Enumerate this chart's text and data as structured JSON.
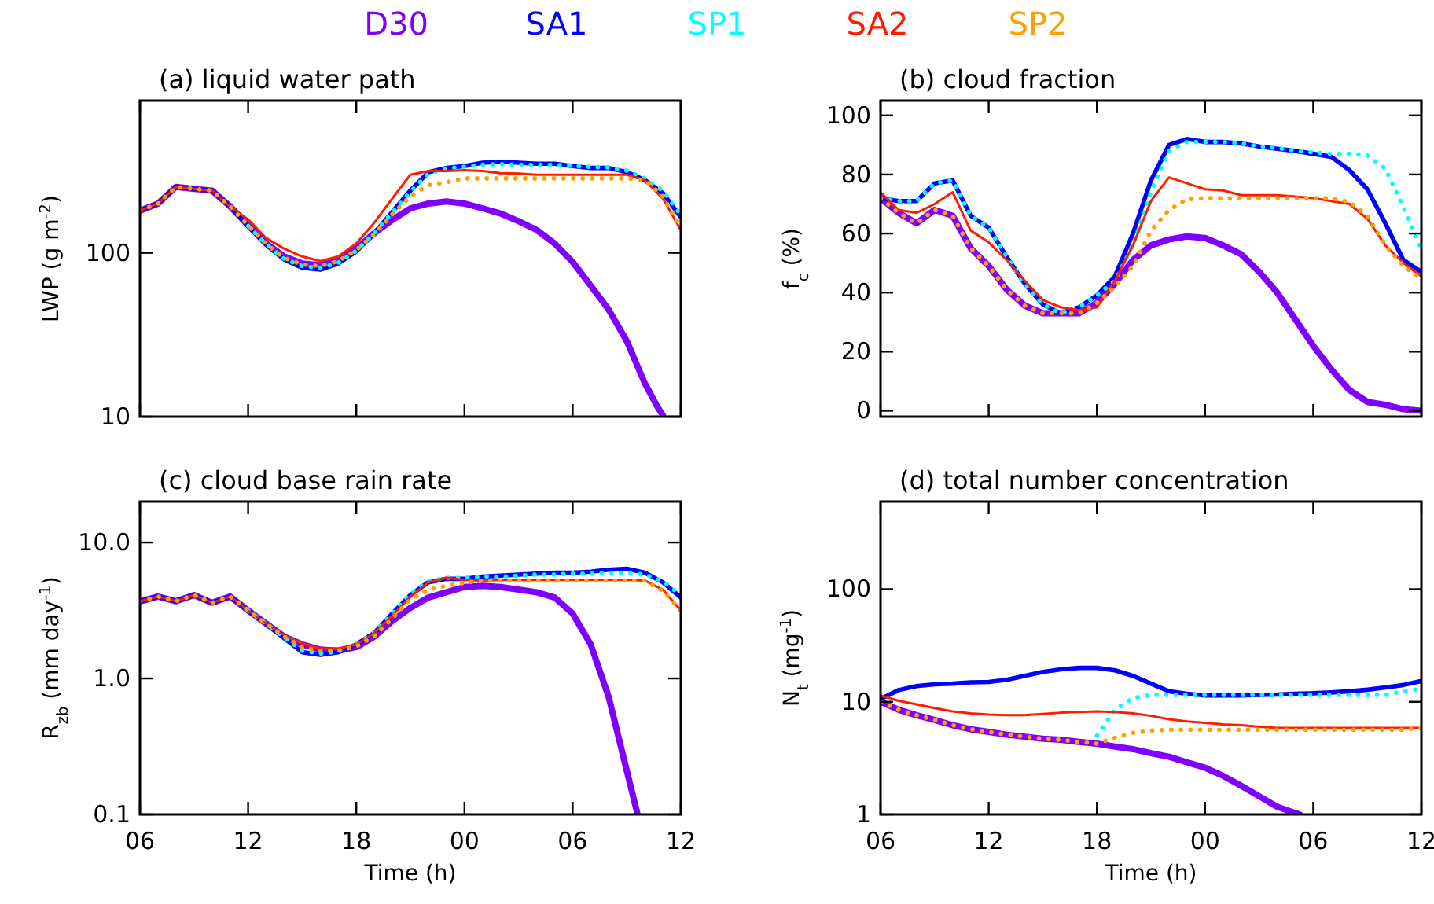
{
  "chart_data": [
    {
      "type": "line",
      "title": "(a) liquid water path",
      "ylabel": "LWP (g m$^{-2}$)",
      "log": true,
      "legend": "top",
      "tick_labels": "y",
      "xlim": [
        6,
        36
      ],
      "xticks": [
        {
          "value": 6,
          "label": null
        },
        {
          "value": 12,
          "label": null
        },
        {
          "value": 18,
          "label": null
        },
        {
          "value": 24,
          "label": null
        },
        {
          "value": 30,
          "label": null
        },
        {
          "value": 36,
          "label": null
        }
      ],
      "ylim": [
        10,
        850
      ],
      "yticks": [
        10,
        100
      ],
      "x": [
        6,
        7,
        8,
        9,
        10,
        11,
        12,
        13,
        14,
        15,
        16,
        17,
        18,
        19,
        20,
        21,
        22,
        23,
        24,
        25,
        26,
        27,
        28,
        29,
        30,
        31,
        32,
        33,
        34,
        35,
        36
      ],
      "series": [
        {
          "name": "D30",
          "color": "#8000ff",
          "x": [
            6,
            7,
            8,
            9,
            10,
            11,
            12,
            13,
            14,
            15,
            16,
            17,
            18,
            19,
            20,
            21,
            22,
            23,
            24,
            25,
            26,
            27,
            28,
            29,
            30,
            31,
            32,
            33,
            34,
            34.7,
            35
          ],
          "values": [
            181,
            200,
            253,
            246,
            240,
            192,
            148,
            114,
            95,
            86,
            84,
            91,
            106,
            132,
            159,
            187,
            200,
            206,
            200,
            187,
            174,
            156,
            138,
            114,
            88,
            63,
            45,
            29,
            16,
            11.5,
            10.2
          ]
        },
        {
          "name": "SA1",
          "color": "#0000ff",
          "values": [
            181,
            200,
            253,
            246,
            240,
            192,
            145,
            112,
            91,
            81,
            79,
            86,
            102,
            132,
            178,
            240,
            311,
            330,
            339,
            355,
            360,
            355,
            350,
            350,
            339,
            330,
            330,
            311,
            278,
            232,
            165
          ]
        },
        {
          "name": "SP1",
          "color": "#00ffff",
          "line_style": "dotted",
          "values": [
            null,
            null,
            null,
            null,
            null,
            null,
            146,
            113,
            92,
            83,
            81,
            87,
            103,
            132,
            176,
            236,
            305,
            328,
            336,
            345,
            348,
            345,
            345,
            345,
            340,
            335,
            332,
            318,
            285,
            240,
            170
          ]
        },
        {
          "name": "SA2",
          "color": "#ff1a00",
          "values": [
            181,
            200,
            253,
            246,
            240,
            192,
            160,
            123,
            106,
            95,
            89,
            95,
            114,
            153,
            215,
            300,
            316,
            316,
            320,
            316,
            307,
            305,
            300,
            300,
            300,
            300,
            300,
            300,
            278,
            215,
            138
          ]
        },
        {
          "name": "SP2",
          "color": "#ffa000",
          "line_style": "dotted",
          "values": [
            181,
            200,
            253,
            246,
            240,
            192,
            147,
            113,
            93,
            85,
            83,
            89,
            104,
            130,
            172,
            222,
            259,
            270,
            285,
            285,
            285,
            285,
            285,
            285,
            285,
            285,
            285,
            285,
            278,
            222,
            142
          ]
        }
      ]
    },
    {
      "type": "line",
      "title": "(b) cloud fraction",
      "ylabel": "f$_{c}$ (%)",
      "tick_labels": "y",
      "xlim": [
        6,
        36
      ],
      "xticks": [
        {
          "value": 6,
          "label": null
        },
        {
          "value": 12,
          "label": null
        },
        {
          "value": 18,
          "label": null
        },
        {
          "value": 24,
          "label": null
        },
        {
          "value": 30,
          "label": null
        },
        {
          "value": 36,
          "label": null
        }
      ],
      "ylim": [
        -2,
        105
      ],
      "yticks": [
        0,
        20,
        40,
        60,
        80,
        100
      ],
      "x": [
        6,
        7,
        8,
        9,
        10,
        11,
        12,
        13,
        14,
        15,
        16,
        17,
        18,
        19,
        20,
        21,
        22,
        23,
        24,
        25,
        26,
        27,
        28,
        29,
        30,
        31,
        32,
        33,
        34,
        35,
        36
      ],
      "series": [
        {
          "color": "#8000ff",
          "values": [
            72,
            67,
            63.5,
            68,
            66,
            55,
            49,
            41,
            35.6,
            33,
            33,
            33,
            36.5,
            43,
            51,
            56,
            58,
            59,
            58.5,
            56,
            53,
            47,
            40,
            31,
            22,
            14,
            7,
            3,
            2,
            0.5,
            0
          ]
        },
        {
          "color": "#0000ff",
          "values": [
            72,
            71,
            71,
            77,
            78,
            66,
            62,
            52,
            43,
            36,
            33,
            35,
            39,
            45.5,
            60,
            78,
            90,
            92,
            91,
            91,
            90.5,
            89.5,
            88.7,
            88,
            87,
            86,
            81.5,
            75,
            63.5,
            51,
            47
          ]
        },
        {
          "color": "#00ffff",
          "line_style": "dotted",
          "values": [
            72,
            71,
            71,
            77,
            78,
            66,
            62,
            52,
            43,
            36,
            33,
            35,
            39,
            44,
            56,
            74,
            88,
            91,
            91,
            91,
            90.5,
            89.5,
            89,
            88,
            87.5,
            87,
            87,
            86.5,
            82,
            69,
            54.5
          ]
        },
        {
          "color": "#ff1a00",
          "values": [
            74,
            68,
            67,
            70,
            74,
            61,
            57,
            51,
            44,
            37.5,
            35,
            34,
            35,
            44,
            56,
            71,
            79,
            77,
            75,
            74.6,
            73,
            73,
            73,
            72.5,
            72,
            71,
            70,
            65,
            56,
            50,
            45.5
          ]
        },
        {
          "color": "#ffa000",
          "line_style": "dotted",
          "values": [
            72,
            67,
            63.5,
            68,
            66,
            55,
            49,
            41,
            35.6,
            33,
            33,
            33,
            36.5,
            42,
            49,
            61,
            68,
            71.6,
            72,
            72,
            72,
            72,
            72,
            72,
            72,
            72,
            70.7,
            66,
            56,
            49,
            44.6
          ]
        }
      ]
    },
    {
      "type": "line",
      "title": "(c) cloud base rain rate",
      "xlabel": "Time (h)",
      "ylabel": "R$_{zb}$ (mm day$^{-1}$)",
      "log": true,
      "xlim": [
        6,
        36
      ],
      "xticks": [
        {
          "value": 6,
          "label": "06"
        },
        {
          "value": 12,
          "label": "12"
        },
        {
          "value": 18,
          "label": "18"
        },
        {
          "value": 24,
          "label": "00"
        },
        {
          "value": 30,
          "label": "06"
        },
        {
          "value": 36,
          "label": "12"
        }
      ],
      "ylim": [
        0.1,
        20
      ],
      "yticks": [
        0.1,
        {
          "value": 1,
          "label": "1.0"
        },
        {
          "value": 10,
          "label": "10.0"
        }
      ],
      "x": [
        6,
        7,
        8,
        9,
        10,
        11,
        12,
        13,
        14,
        15,
        16,
        17,
        18,
        19,
        20,
        21,
        22,
        23,
        24,
        25,
        26,
        27,
        28,
        29,
        30,
        31,
        32,
        33,
        34,
        35,
        36
      ],
      "series": [
        {
          "color": "#8000ff",
          "x": [
            6,
            7,
            8,
            9,
            10,
            11,
            12,
            13,
            14,
            15,
            16,
            17,
            18,
            19,
            20,
            21,
            22,
            23,
            24,
            25,
            26,
            27,
            28,
            29,
            30,
            31,
            32,
            33,
            33.6
          ],
          "values": [
            3.68,
            4.0,
            3.7,
            4.1,
            3.6,
            4.0,
            3.16,
            2.53,
            2.03,
            1.78,
            1.63,
            1.6,
            1.7,
            2.03,
            2.65,
            3.3,
            3.94,
            4.3,
            4.7,
            4.8,
            4.7,
            4.5,
            4.3,
            3.94,
            3.0,
            1.78,
            0.73,
            0.21,
            0.1
          ]
        },
        {
          "color": "#0000ff",
          "values": [
            3.68,
            4.0,
            3.7,
            4.1,
            3.6,
            4.0,
            3.16,
            2.53,
            1.98,
            1.56,
            1.49,
            1.56,
            1.78,
            2.16,
            3.0,
            4.1,
            5.1,
            5.4,
            5.4,
            5.6,
            5.7,
            5.8,
            5.9,
            6.0,
            6.0,
            6.1,
            6.3,
            6.4,
            6.0,
            5.1,
            3.94
          ]
        },
        {
          "color": "#00ffff",
          "line_style": "dotted",
          "values": [
            null,
            null,
            null,
            null,
            null,
            null,
            3.16,
            2.53,
            2.0,
            1.6,
            1.52,
            1.58,
            1.8,
            2.16,
            3.0,
            4.2,
            5.2,
            5.5,
            5.5,
            5.6,
            5.6,
            5.7,
            5.8,
            5.8,
            5.9,
            5.9,
            6.0,
            6.0,
            5.8,
            5.2,
            4.1
          ]
        },
        {
          "color": "#ff1a00",
          "values": [
            3.68,
            4.0,
            3.7,
            4.1,
            3.6,
            4.0,
            3.16,
            2.53,
            2.08,
            1.81,
            1.66,
            1.66,
            1.78,
            2.16,
            2.9,
            4.0,
            5.1,
            5.5,
            5.3,
            5.25,
            5.3,
            5.3,
            5.3,
            5.3,
            5.3,
            5.3,
            5.3,
            5.3,
            5.25,
            4.5,
            3.16
          ]
        },
        {
          "color": "#ffa000",
          "line_style": "dotted",
          "values": [
            3.68,
            4.0,
            3.7,
            4.1,
            3.6,
            4.0,
            3.16,
            2.53,
            2.03,
            1.7,
            1.6,
            1.6,
            1.72,
            2.05,
            2.77,
            3.8,
            4.5,
            4.8,
            5.05,
            5.25,
            5.25,
            5.25,
            5.25,
            5.25,
            5.25,
            5.25,
            5.25,
            5.25,
            5.25,
            4.4,
            3.16
          ]
        }
      ]
    },
    {
      "type": "line",
      "title": "(d) total number concentration",
      "xlabel": "Time (h)",
      "ylabel": "N$_{t}$ (mg$^{-1}$)",
      "log": true,
      "xlim": [
        6,
        36
      ],
      "xticks": [
        {
          "value": 6,
          "label": "06"
        },
        {
          "value": 12,
          "label": "12"
        },
        {
          "value": 18,
          "label": "18"
        },
        {
          "value": 24,
          "label": "00"
        },
        {
          "value": 30,
          "label": "06"
        },
        {
          "value": 36,
          "label": "12"
        }
      ],
      "ylim": [
        1,
        600
      ],
      "yticks": [
        1,
        10,
        100
      ],
      "x": [
        6,
        7,
        8,
        9,
        10,
        11,
        12,
        13,
        14,
        15,
        16,
        17,
        18,
        19,
        20,
        21,
        22,
        23,
        24,
        25,
        26,
        27,
        28,
        29,
        30,
        31,
        32,
        33,
        34,
        35,
        36
      ],
      "series": [
        {
          "color": "#8000ff",
          "x": [
            6,
            7,
            8,
            9,
            10,
            11,
            12,
            13,
            14,
            15,
            16,
            17,
            18,
            19,
            20,
            21,
            22,
            23,
            24,
            25,
            26,
            27,
            28,
            29,
            29.25
          ],
          "values": [
            10,
            8.5,
            7.6,
            6.9,
            6.2,
            5.7,
            5.4,
            5.1,
            4.9,
            4.7,
            4.6,
            4.4,
            4.25,
            4.0,
            3.8,
            3.5,
            3.25,
            2.9,
            2.6,
            2.2,
            1.8,
            1.45,
            1.17,
            1.03,
            1.0
          ]
        },
        {
          "color": "#0000ff",
          "values": [
            10.6,
            12.7,
            13.8,
            14.3,
            14.5,
            14.9,
            15,
            15.7,
            17,
            18.4,
            19.4,
            20,
            20,
            19,
            17,
            14.5,
            12.4,
            11.8,
            11.4,
            11.4,
            11.4,
            11.5,
            11.6,
            11.8,
            11.9,
            12.1,
            12.4,
            12.8,
            13.4,
            14.1,
            15.3
          ]
        },
        {
          "color": "#00ffff",
          "line_style": "dotted",
          "values": [
            null,
            null,
            null,
            null,
            null,
            null,
            null,
            null,
            null,
            null,
            null,
            null,
            5.0,
            8.5,
            10.8,
            11.5,
            11.5,
            11.5,
            11.5,
            11.5,
            11.5,
            11.5,
            11.5,
            11.5,
            11.5,
            11.5,
            11.5,
            11.5,
            11.5,
            12.4,
            13
          ]
        },
        {
          "color": "#ff1a00",
          "values": [
            11.4,
            10.2,
            9.5,
            8.8,
            8.2,
            7.9,
            7.7,
            7.6,
            7.6,
            7.8,
            8.0,
            8.1,
            8.2,
            8.1,
            7.9,
            7.5,
            7.0,
            6.7,
            6.5,
            6.3,
            6.2,
            6.0,
            5.85,
            5.85,
            5.85,
            5.85,
            5.85,
            5.85,
            5.85,
            5.85,
            5.85
          ]
        },
        {
          "color": "#ffa000",
          "line_style": "dotted",
          "values": [
            10,
            8.5,
            7.6,
            6.9,
            6.2,
            5.7,
            5.4,
            5.1,
            4.9,
            4.7,
            4.6,
            4.4,
            4.25,
            4.8,
            5.3,
            5.55,
            5.65,
            5.65,
            5.65,
            5.65,
            5.65,
            5.65,
            5.65,
            5.65,
            5.65,
            5.65,
            5.65,
            5.65,
            5.65,
            5.65,
            5.85
          ]
        }
      ]
    }
  ]
}
